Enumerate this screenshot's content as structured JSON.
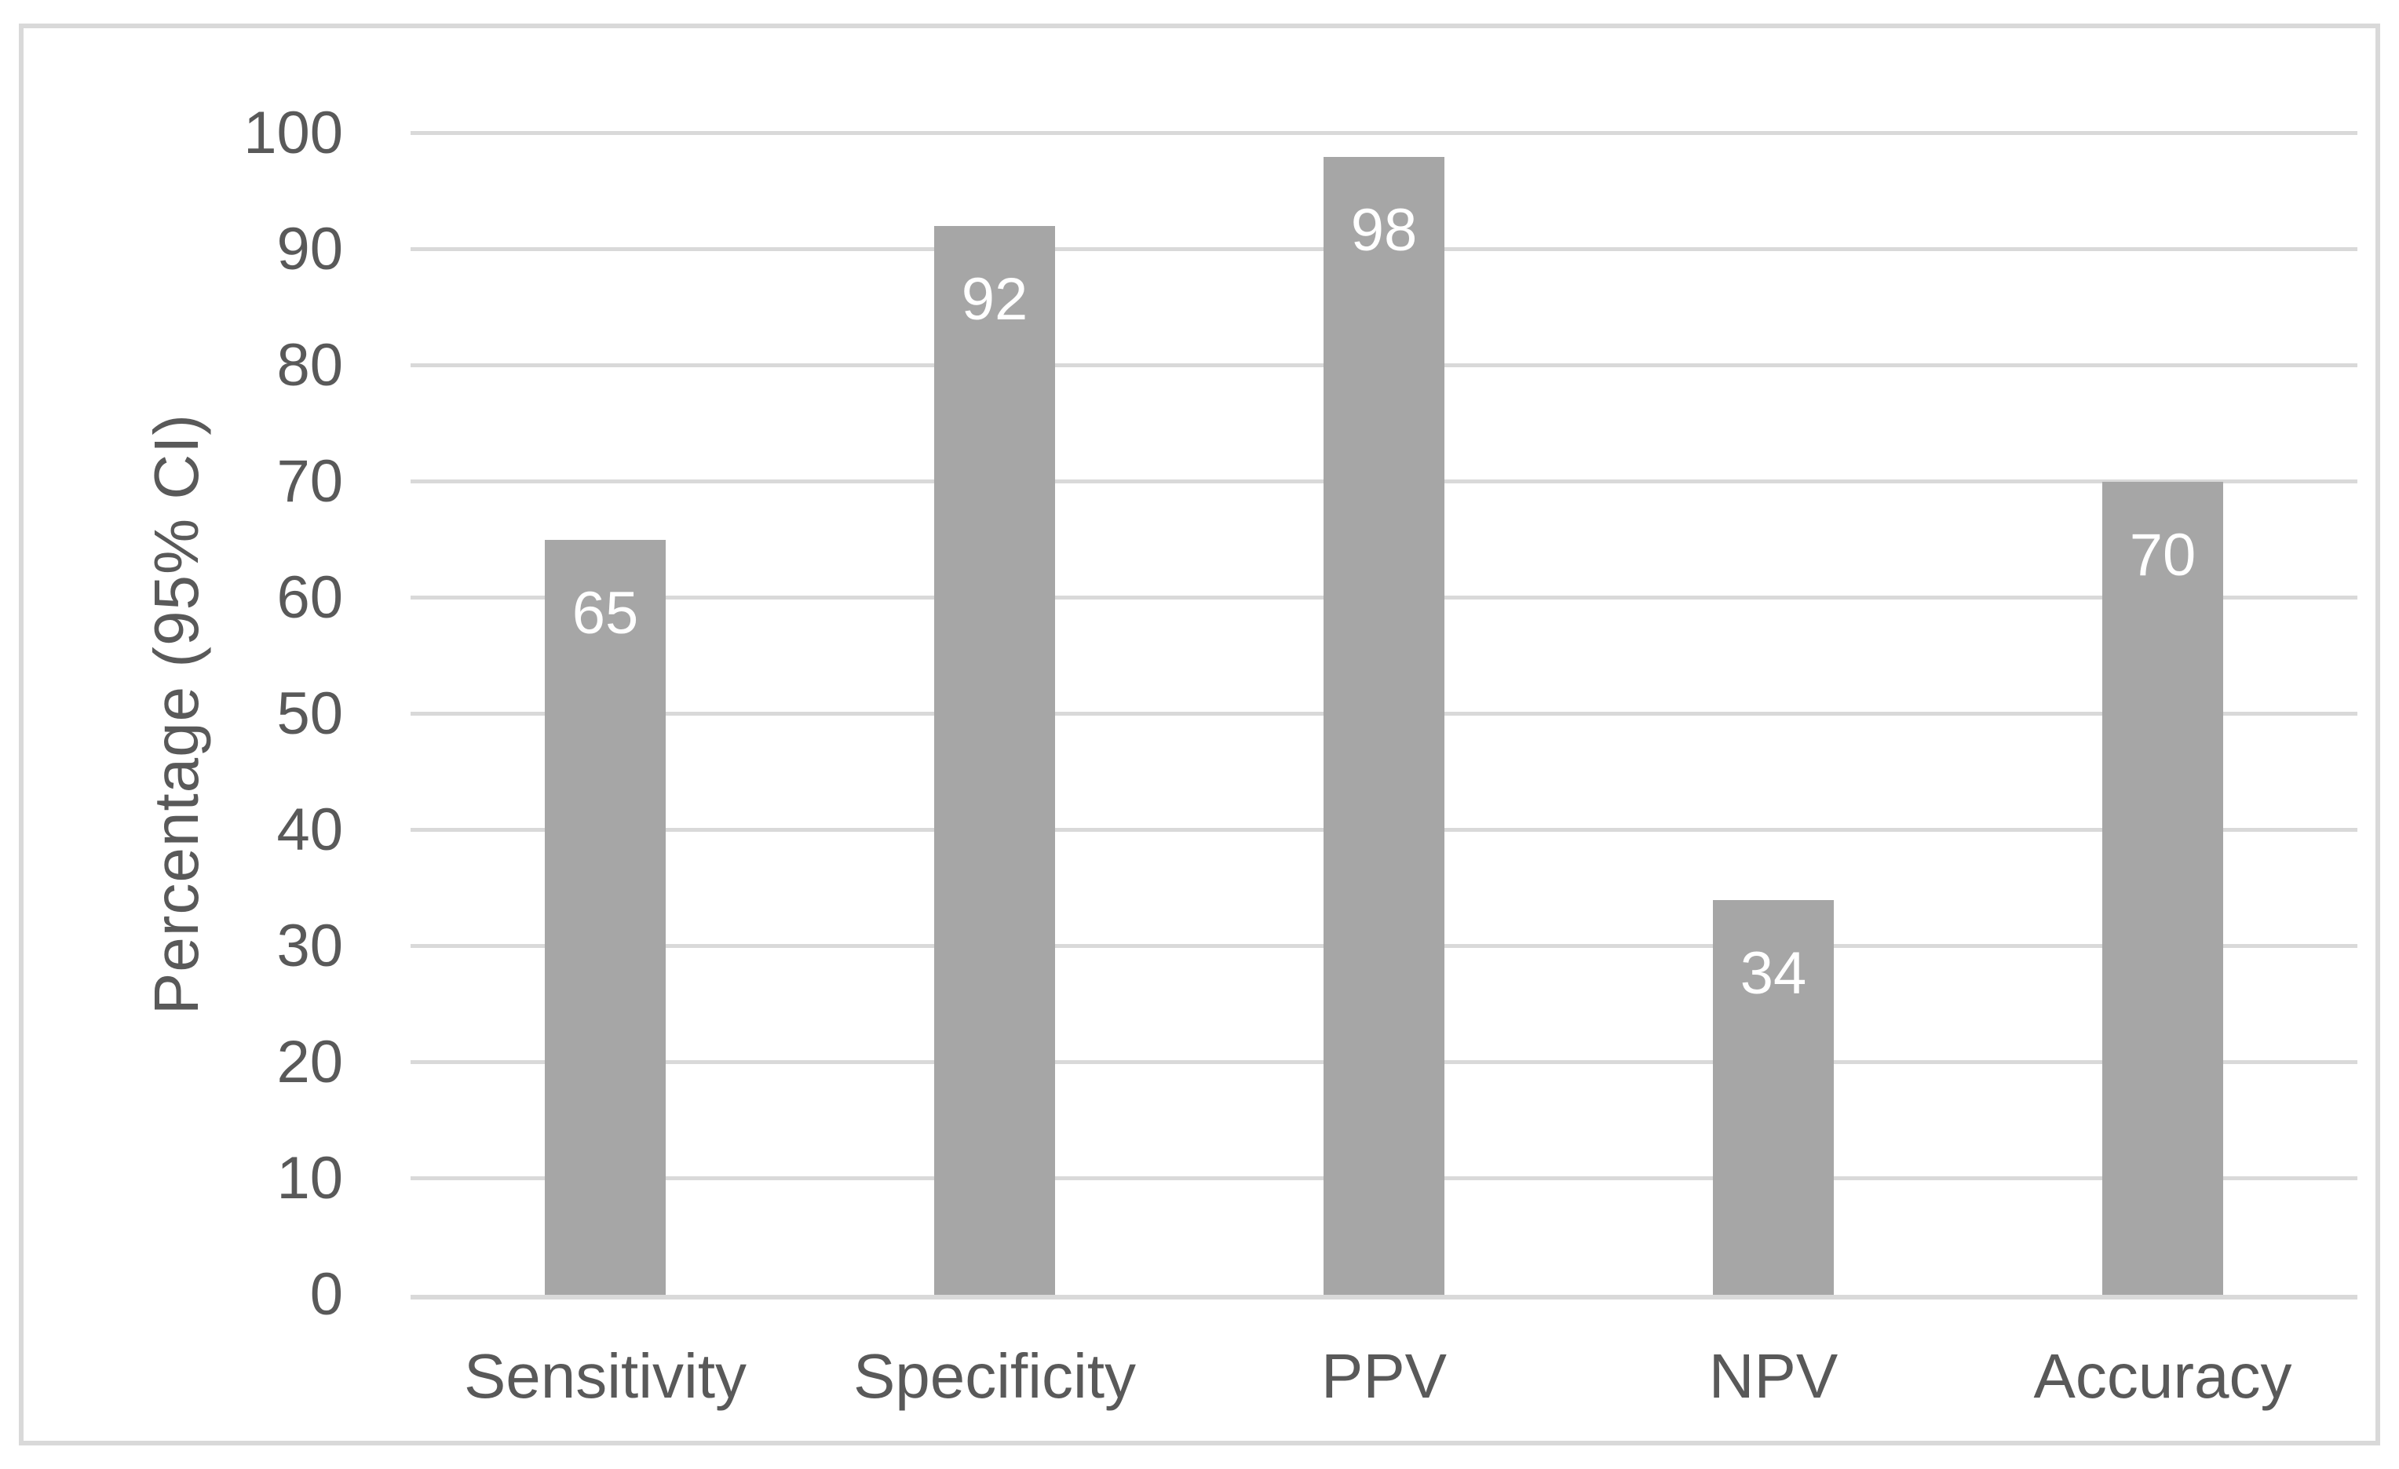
{
  "chart_data": {
    "type": "bar",
    "categories": [
      "Sensitivity",
      "Specificity",
      "PPV",
      "NPV",
      "Accuracy"
    ],
    "values": [
      65,
      92,
      98,
      34,
      70
    ],
    "title": "",
    "xlabel": "",
    "ylabel": "Percentage (95% CI)",
    "ylim": [
      0,
      100
    ],
    "yticks": [
      0,
      10,
      20,
      30,
      40,
      50,
      60,
      70,
      80,
      90,
      100
    ],
    "grid": true,
    "legend": false,
    "data_labels_position": "inside-end",
    "colors": {
      "bar": "#a6a6a6",
      "gridline": "#d9d9d9",
      "axis_line": "#d9d9d9",
      "frame_border": "#d9d9d9",
      "tick_text": "#595959",
      "category_text": "#595959",
      "data_label_text": "#ffffff",
      "background": "#ffffff"
    }
  }
}
